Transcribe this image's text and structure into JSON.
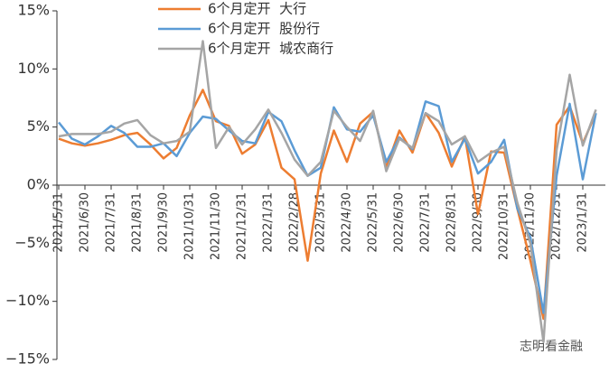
{
  "chart_data": {
    "type": "line",
    "categories": [
      "2021/5/31",
      null,
      "2021/6/30",
      null,
      "2021/7/31",
      null,
      "2021/8/31",
      null,
      "2021/9/30",
      null,
      "2021/10/31",
      null,
      "2021/11/30",
      null,
      "2021/12/31",
      null,
      "2022/1/31",
      null,
      "2022/2/28",
      null,
      "2022/3/31",
      null,
      "2022/4/30",
      null,
      "2022/5/31",
      null,
      "2022/6/30",
      null,
      "2022/7/31",
      null,
      "2022/8/31",
      null,
      "2022/9/30",
      null,
      "2022/10/31",
      null,
      "2022/11/30",
      null,
      "2022/12/31",
      null,
      "2023/1/31",
      null
    ],
    "series": [
      {
        "name": "6个月定开  大行",
        "color": "#ed7d31",
        "values": [
          4.0,
          3.6,
          3.4,
          3.6,
          3.9,
          4.3,
          4.5,
          3.5,
          2.3,
          3.2,
          6.0,
          8.2,
          5.5,
          5.1,
          2.7,
          3.5,
          5.6,
          1.5,
          0.5,
          -6.5,
          1.0,
          4.7,
          2.0,
          5.3,
          6.3,
          1.5,
          4.7,
          2.8,
          6.2,
          4.5,
          1.6,
          4.2,
          -2.5,
          2.9,
          2.8,
          -2.0,
          -6.5,
          -11.5,
          5.2,
          6.8,
          3.6,
          6.2
        ]
      },
      {
        "name": "6个月定开  股份行",
        "color": "#5b9bd5",
        "values": [
          5.4,
          4.0,
          3.5,
          4.2,
          5.1,
          4.5,
          3.3,
          3.3,
          3.6,
          2.5,
          4.5,
          5.9,
          5.7,
          4.7,
          3.8,
          3.6,
          6.3,
          5.5,
          3.0,
          0.8,
          1.5,
          6.7,
          4.8,
          4.6,
          6.0,
          2.0,
          4.1,
          3.1,
          7.2,
          6.8,
          2.0,
          4.0,
          1.0,
          2.0,
          3.9,
          -2.0,
          -4.5,
          -11.0,
          0.8,
          7.0,
          0.5,
          6.2
        ]
      },
      {
        "name": "6个月定开  城农商行",
        "color": "#a5a5a5",
        "values": [
          4.2,
          4.4,
          4.4,
          4.4,
          4.6,
          5.3,
          5.6,
          4.3,
          3.6,
          3.8,
          4.6,
          12.4,
          3.2,
          5.0,
          3.5,
          4.8,
          6.5,
          4.5,
          2.2,
          0.8,
          2.0,
          6.4,
          5.0,
          3.8,
          6.4,
          1.2,
          4.0,
          3.2,
          6.2,
          5.5,
          3.5,
          4.2,
          2.0,
          2.8,
          3.3,
          -1.5,
          -5.0,
          -13.5,
          3.0,
          9.5,
          3.4,
          6.5
        ]
      }
    ],
    "ylim": [
      -15,
      15
    ],
    "yticks": [
      {
        "value": -15,
        "label": "−15%"
      },
      {
        "value": -10,
        "label": "−10%"
      },
      {
        "value": -5,
        "label": "−5%"
      },
      {
        "value": 0,
        "label": "0%"
      },
      {
        "value": 5,
        "label": "5%"
      },
      {
        "value": 10,
        "label": "10%"
      },
      {
        "value": 15,
        "label": "15%"
      }
    ],
    "legend": "top",
    "annotations": [
      "志明看金融"
    ]
  }
}
